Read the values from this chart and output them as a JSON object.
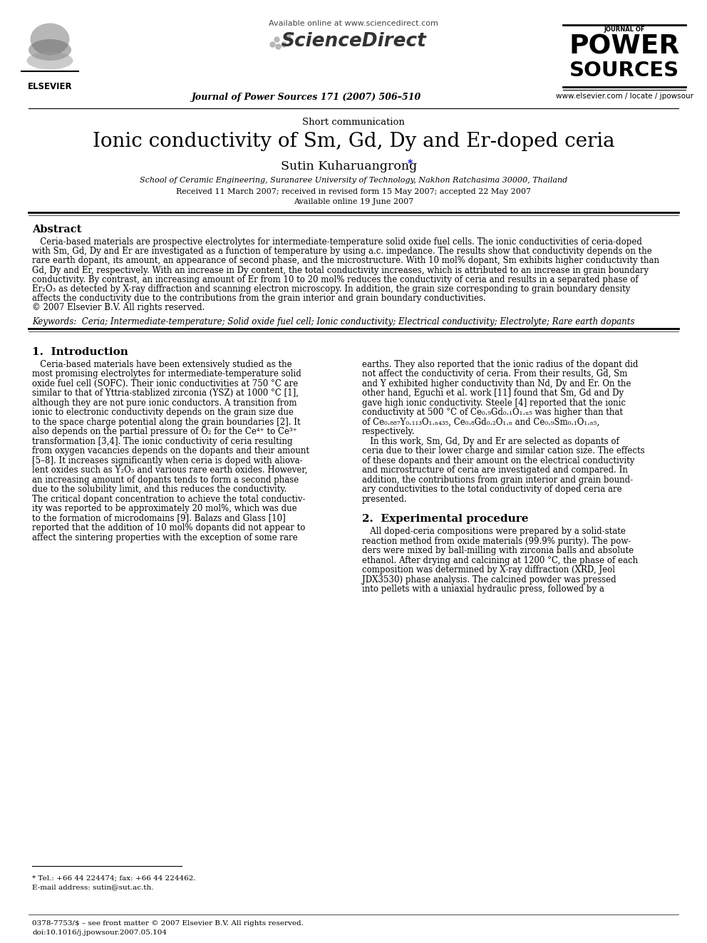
{
  "bg_color": "#ffffff",
  "header_available": "Available online at www.sciencedirect.com",
  "header_journal": "Journal of Power Sources 171 (2007) 506–510",
  "header_url": "www.elsevier.com / locate / jpowsour",
  "article_type": "Short communication",
  "title": "Ionic conductivity of Sm, Gd, Dy and Er-doped ceria",
  "author": "Sutin Kuharuangrong",
  "affiliation": "School of Ceramic Engineering, Suranaree University of Technology, Nakhon Ratchasima 30000, Thailand",
  "dates": "Received 11 March 2007; received in revised form 15 May 2007; accepted 22 May 2007",
  "available": "Available online 19 June 2007",
  "abstract_title": "Abstract",
  "keywords": "Keywords:  Ceria; Intermediate-temperature; Solid oxide fuel cell; Ionic conductivity; Electrical conductivity; Electrolyte; Rare earth dopants",
  "section1_title": "1.  Introduction",
  "section2_title": "2.  Experimental procedure",
  "footnote_tel": "* Tel.: +66 44 224474; fax: +66 44 224462.",
  "footnote_email": "E-mail address: sutin@sut.ac.th.",
  "footer_issn": "0378-7753/$ – see front matter © 2007 Elsevier B.V. All rights reserved.",
  "footer_doi": "doi:10.1016/j.jpowsour.2007.05.104",
  "abstract_lines": [
    "   Ceria-based materials are prospective electrolytes for intermediate-temperature solid oxide fuel cells. The ionic conductivities of ceria-doped",
    "with Sm, Gd, Dy and Er are investigated as a function of temperature by using a.c. impedance. The results show that conductivity depends on the",
    "rare earth dopant, its amount, an appearance of second phase, and the microstructure. With 10 mol% dopant, Sm exhibits higher conductivity than",
    "Gd, Dy and Er, respectively. With an increase in Dy content, the total conductivity increases, which is attributed to an increase in grain boundary",
    "conductivity. By contrast, an increasing amount of Er from 10 to 20 mol% reduces the conductivity of ceria and results in a separated phase of",
    "Er₂O₃ as detected by X-ray diffraction and scanning electron microscopy. In addition, the grain size corresponding to grain boundary density",
    "affects the conductivity due to the contributions from the grain interior and grain boundary conductivities.",
    "© 2007 Elsevier B.V. All rights reserved."
  ],
  "col1_lines": [
    "   Ceria-based materials have been extensively studied as the",
    "most promising electrolytes for intermediate-temperature solid",
    "oxide fuel cell (SOFC). Their ionic conductivities at 750 °C are",
    "similar to that of Yttria-stablized zirconia (YSZ) at 1000 °C [1],",
    "although they are not pure ionic conductors. A transition from",
    "ionic to electronic conductivity depends on the grain size due",
    "to the space charge potential along the grain boundaries [2]. It",
    "also depends on the partial pressure of O₂ for the Ce⁴⁺ to Ce³⁺",
    "transformation [3,4]. The ionic conductivity of ceria resulting",
    "from oxygen vacancies depends on the dopants and their amount",
    "[5–8]. It increases significantly when ceria is doped with aliova-",
    "lent oxides such as Y₂O₃ and various rare earth oxides. However,",
    "an increasing amount of dopants tends to form a second phase",
    "due to the solubility limit, and this reduces the conductivity.",
    "The critical dopant concentration to achieve the total conductiv-",
    "ity was reported to be approximately 20 mol%, which was due",
    "to the formation of microdomains [9]. Balazs and Glass [10]",
    "reported that the addition of 10 mol% dopants did not appear to",
    "affect the sintering properties with the exception of some rare"
  ],
  "col2_intro_lines": [
    "earths. They also reported that the ionic radius of the dopant did",
    "not affect the conductivity of ceria. From their results, Gd, Sm",
    "and Y exhibited higher conductivity than Nd, Dy and Er. On the",
    "other hand, Eguchi et al. work [11] found that Sm, Gd and Dy",
    "gave high ionic conductivity. Steele [4] reported that the ionic",
    "conductivity at 500 °C of Ce₀.₉Gd₀.₁O₁.ₙ₅ was higher than that",
    "of Ce₀.₈₈₇Y₀.₁₁₃O₁.ₙ₄₃₅, Ce₀.₈Gd₀.₂O₁.ₙ and Ce₀.₉Sm₀.₁O₁.ₙ₅,",
    "respectively.",
    "   In this work, Sm, Gd, Dy and Er are selected as dopants of",
    "ceria due to their lower charge and similar cation size. The effects",
    "of these dopants and their amount on the electrical conductivity",
    "and microstructure of ceria are investigated and compared. In",
    "addition, the contributions from grain interior and grain bound-",
    "ary conductivities to the total conductivity of doped ceria are",
    "presented."
  ],
  "col2_exp_lines": [
    "   All doped-ceria compositions were prepared by a solid-state",
    "reaction method from oxide materials (99.9% purity). The pow-",
    "ders were mixed by ball-milling with zirconia balls and absolute",
    "ethanol. After drying and calcining at 1200 °C, the phase of each",
    "composition was determined by X-ray diffraction (XRD, Jeol",
    "JDX3530) phase analysis. The calcined powder was pressed",
    "into pellets with a uniaxial hydraulic press, followed by a"
  ]
}
